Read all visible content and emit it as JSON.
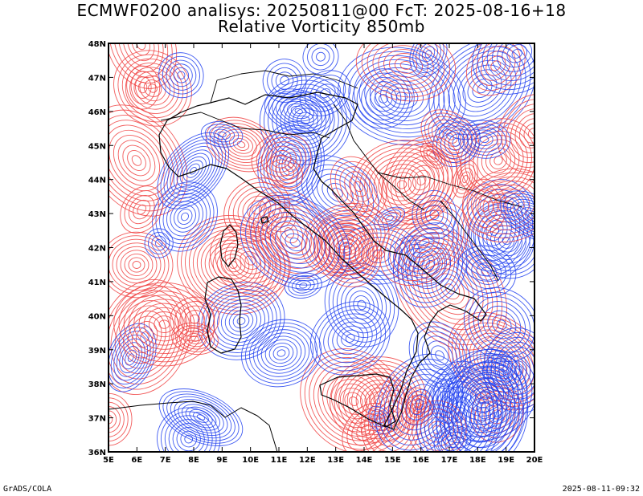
{
  "title_line1": "ECMWF0200 analisys: 20250811@00 FcT: 2025-08-16+18",
  "title_line2": "Relative Vorticity 850mb",
  "lat_labels": [
    "48N",
    "47N",
    "46N",
    "45N",
    "44N",
    "43N",
    "42N",
    "41N",
    "40N",
    "39N",
    "38N",
    "37N",
    "36N"
  ],
  "lon_labels": [
    "5E",
    "6E",
    "7E",
    "8E",
    "9E",
    "10E",
    "11E",
    "12E",
    "13E",
    "14E",
    "15E",
    "16E",
    "17E",
    "18E",
    "19E",
    "20E"
  ],
  "extent": {
    "lon_min": 5,
    "lon_max": 20,
    "lat_min": 36,
    "lat_max": 48
  },
  "colors": {
    "positive": "#f04040",
    "negative": "#2040f0",
    "coast": "#000000",
    "frame": "#000000"
  },
  "credit_left": "GrADS/COLA",
  "credit_right": "2025-08-11-09:32"
}
